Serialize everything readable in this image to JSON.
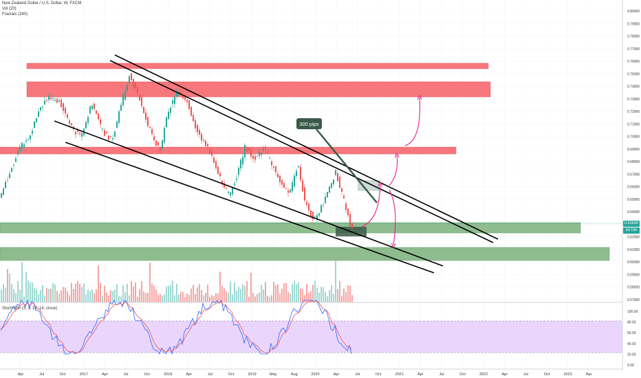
{
  "header": {
    "symbol": "New Zealand Dollar / U.S. Dollar, W, FXCM",
    "vol": "Vol (20)",
    "fractals": "Fractals (240)"
  },
  "price_axis": {
    "labels": [
      "0.80000",
      "0.79000",
      "0.78000",
      "0.77000",
      "0.76000",
      "0.75000",
      "0.74000",
      "0.73000",
      "0.72000",
      "0.71000",
      "0.70000",
      "0.69000",
      "0.68000",
      "0.67000",
      "0.66000",
      "0.65000",
      "0.64000",
      "0.63000",
      "0.62000",
      "0.61000",
      "0.60000",
      "0.59000",
      "0.58000",
      "0.57000"
    ],
    "last_price": "0.62636",
    "countdown": "2d 19h",
    "last_price_color": "#26a69a"
  },
  "annotation": {
    "label": "300 pips"
  },
  "rsi": {
    "title": "Stoch RSI (3, 3, 14, 14, close)",
    "labels": [
      "100.00",
      "80.00",
      "60.00",
      "40.00",
      "20.00",
      "0.00"
    ]
  },
  "time_axis": {
    "labels": [
      "Apr",
      "Jul",
      "Oct",
      "2017",
      "Apr",
      "Jul",
      "Oct",
      "2018",
      "Apr",
      "Jul",
      "Oct",
      "2019",
      "May",
      "Aug",
      "2020",
      "Apr",
      "Jul",
      "Oct",
      "2021",
      "Apr",
      "Jul",
      "Oct",
      "2022",
      "Apr",
      "Jul",
      "Oct",
      "2023",
      "Apr"
    ]
  },
  "colors": {
    "resistance_zone": "#f7777c",
    "support_zone": "#8fbc8f",
    "up_candle": "#26a69a",
    "down_candle": "#ef5350",
    "projection_arrow": "#e91e8c",
    "rsi_band": "#e1c4fb"
  }
}
